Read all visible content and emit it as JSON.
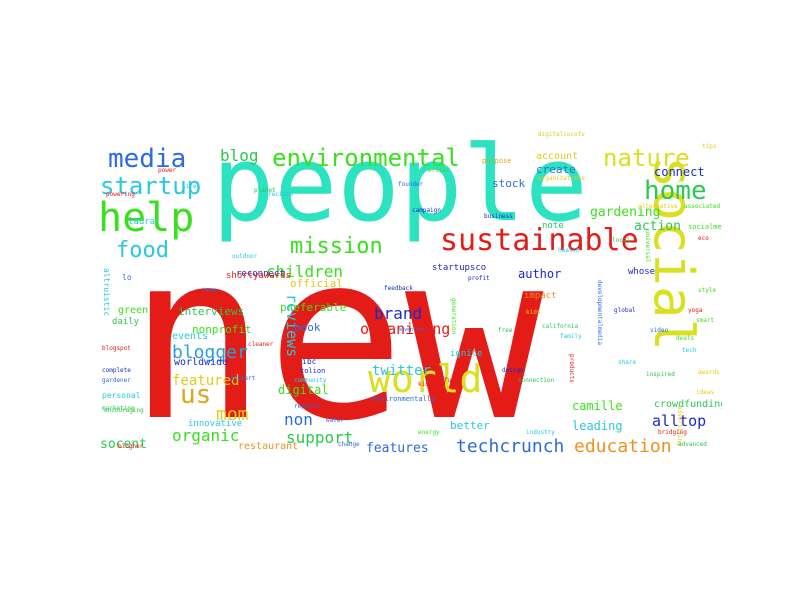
{
  "palette": {
    "red": "#e31c18",
    "teal": "#2be3c0",
    "lime": "#d9e021",
    "green": "#39e01e",
    "blue": "#2c6be0",
    "navy": "#1c2bc8",
    "yellow": "#e8c81a",
    "orange": "#f09020",
    "cyan": "#29c8e0",
    "aqua": "#1fe0e0"
  },
  "words": [
    {
      "text": "new",
      "color": "#e31c18"
    },
    {
      "text": "people",
      "color": "#2be3c0"
    },
    {
      "text": "social",
      "color": "#d9e021"
    },
    {
      "text": "sustainable",
      "color": "#e31c18"
    },
    {
      "text": "help",
      "color": "#39e01e"
    },
    {
      "text": "world",
      "color": "#d9e021"
    },
    {
      "text": "environmental",
      "color": "#39e01e"
    },
    {
      "text": "media",
      "color": "#2c6be0"
    },
    {
      "text": "startup",
      "color": "#29c8e0"
    },
    {
      "text": "food",
      "color": "#29c8e0"
    },
    {
      "text": "mission",
      "color": "#39e01e"
    },
    {
      "text": "nature",
      "color": "#d9e021"
    },
    {
      "text": "home",
      "color": "#2bc850"
    },
    {
      "text": "us",
      "color": "#d9a71a"
    },
    {
      "text": "blog",
      "color": "#2bc850"
    },
    {
      "text": "blogger",
      "color": "#29a0e0"
    },
    {
      "text": "mom",
      "color": "#e8c81a"
    },
    {
      "text": "children",
      "color": "#39e01e"
    },
    {
      "text": "brand",
      "color": "#1c2bc8"
    },
    {
      "text": "organizing",
      "color": "#e31c18"
    },
    {
      "text": "education",
      "color": "#f09020"
    },
    {
      "text": "techcrunch",
      "color": "#2c6be0"
    },
    {
      "text": "support",
      "color": "#2bc850"
    },
    {
      "text": "organic",
      "color": "#39e01e"
    },
    {
      "text": "featured",
      "color": "#e8c81a"
    },
    {
      "text": "twitter",
      "color": "#29c8e0"
    },
    {
      "text": "reviews",
      "color": "#29c8e0"
    },
    {
      "text": "non",
      "color": "#2c6be0"
    },
    {
      "text": "alltop",
      "color": "#1c2bc8"
    },
    {
      "text": "gardening",
      "color": "#39e01e"
    },
    {
      "text": "action",
      "color": "#2bc850"
    },
    {
      "text": "connect",
      "color": "#1c2bc8"
    },
    {
      "text": "features",
      "color": "#2c6be0"
    },
    {
      "text": "socent",
      "color": "#2bc850"
    },
    {
      "text": "leading",
      "color": "#29c8e0"
    },
    {
      "text": "camille",
      "color": "#39e01e"
    },
    {
      "text": "crowdfunding",
      "color": "#2bc850"
    },
    {
      "text": "interviews",
      "color": "#2bc850"
    },
    {
      "text": "nonprofit",
      "color": "#39e01e"
    },
    {
      "text": "events",
      "color": "#29c8e0"
    },
    {
      "text": "worldwide",
      "color": "#1c2bc8"
    },
    {
      "text": "digital",
      "color": "#39e01e"
    },
    {
      "text": "better",
      "color": "#29c8e0"
    },
    {
      "text": "restaurant",
      "color": "#f09020"
    },
    {
      "text": "author",
      "color": "#1c2bc8"
    },
    {
      "text": "stock",
      "color": "#2c6be0"
    },
    {
      "text": "create",
      "color": "#2c6be0"
    },
    {
      "text": "preferable",
      "color": "#39e01e"
    },
    {
      "text": "official",
      "color": "#e8c81a"
    },
    {
      "text": "book",
      "color": "#2c6be0"
    },
    {
      "text": "account",
      "color": "#e8c81a"
    },
    {
      "text": "innovative",
      "color": "#29c8e0"
    },
    {
      "text": "daily",
      "color": "#2bc850"
    },
    {
      "text": "green",
      "color": "#39e01e"
    },
    {
      "text": "reconnect",
      "color": "#1c2bc8"
    },
    {
      "text": "impact",
      "color": "#f09020"
    },
    {
      "text": "ignite",
      "color": "#29c8e0"
    },
    {
      "text": "startupsco",
      "color": "#1c2bc8"
    },
    {
      "text": "note",
      "color": "#2bc850"
    },
    {
      "text": "whose",
      "color": "#1c2bc8"
    },
    {
      "text": "laura",
      "color": "#29c8e0"
    },
    {
      "text": "shortyawards",
      "color": "#e31c18"
    },
    {
      "text": "tolion",
      "color": "#1c2bc8"
    },
    {
      "text": "ibc",
      "color": "#1c2bc8"
    },
    {
      "text": "environmentally",
      "color": "#2c6be0"
    },
    {
      "text": "personal",
      "color": "#29c8e0"
    },
    {
      "text": "gardener",
      "color": "#2c6be0"
    },
    {
      "text": "lo",
      "color": "#2c6be0"
    },
    {
      "text": "blogspot",
      "color": "#e31c18"
    },
    {
      "text": "complete",
      "color": "#1c2bc8"
    },
    {
      "text": "marketing",
      "color": "#2bc850"
    },
    {
      "text": "altruistic",
      "color": "#29c8e0"
    },
    {
      "text": "purpose",
      "color": "#d9a71a"
    },
    {
      "text": "digitalcocotv",
      "color": "#e8c81a"
    },
    {
      "text": "organizations",
      "color": "#e8c81a"
    },
    {
      "text": "advertising",
      "color": "#e8c81a"
    },
    {
      "text": "eco",
      "color": "#e31c18"
    },
    {
      "text": "business",
      "color": "#1c2bc8"
    },
    {
      "text": "campaign",
      "color": "#1c2bc8"
    },
    {
      "text": "connection",
      "color": "#2bc850"
    },
    {
      "text": "generation",
      "color": "#39e01e"
    },
    {
      "text": "california",
      "color": "#2bc850"
    },
    {
      "text": "products",
      "color": "#e31c18"
    },
    {
      "text": "community",
      "color": "#29c8e0"
    },
    {
      "text": "reports",
      "color": "#2c6be0"
    },
    {
      "text": "change",
      "color": "#2c6be0"
    },
    {
      "text": "industry",
      "color": "#29c8e0"
    },
    {
      "text": "bridging",
      "color": "#e31c18"
    },
    {
      "text": "advanced",
      "color": "#2bc850"
    },
    {
      "text": "associated",
      "color": "#39e01e"
    },
    {
      "text": "universal",
      "color": "#39e01e"
    },
    {
      "text": "socialmedia",
      "color": "#39e01e"
    },
    {
      "text": "developmentalmedia",
      "color": "#2c6be0"
    },
    {
      "text": "powering",
      "color": "#e31c18"
    },
    {
      "text": "encouraging",
      "color": "#2bc850"
    },
    {
      "text": "blogher",
      "color": "#e31c18"
    },
    {
      "text": "outdoor",
      "color": "#29c8e0"
    },
    {
      "text": "feedback",
      "color": "#1c2bc8"
    },
    {
      "text": "adventure",
      "color": "#2c6be0"
    },
    {
      "text": "alternative",
      "color": "#e8c81a"
    },
    {
      "text": "planet",
      "color": "#2bc850"
    },
    {
      "text": "recipes",
      "color": "#29c8e0"
    },
    {
      "text": "design",
      "color": "#1c2bc8"
    },
    {
      "text": "cleaner",
      "color": "#e31c18"
    },
    {
      "text": "dessert",
      "color": "#2c6be0"
    },
    {
      "text": "awards",
      "color": "#e8c81a"
    },
    {
      "text": "tech",
      "color": "#29c8e0"
    },
    {
      "text": "smart",
      "color": "#39e01e"
    },
    {
      "text": "kid",
      "color": "#e31c18"
    },
    {
      "text": "founder",
      "color": "#2c6be0"
    },
    {
      "text": "writer",
      "color": "#39e01e"
    },
    {
      "text": "health",
      "color": "#29c8e0"
    },
    {
      "text": "local",
      "color": "#2bc850"
    },
    {
      "text": "tips",
      "color": "#e8c81a"
    },
    {
      "text": "profit",
      "color": "#1c2bc8"
    },
    {
      "text": "fund",
      "color": "#e31c18"
    },
    {
      "text": "share",
      "color": "#29c8e0"
    },
    {
      "text": "video",
      "color": "#2c6be0"
    },
    {
      "text": "deals",
      "color": "#39e01e"
    },
    {
      "text": "inspired",
      "color": "#2bc850"
    },
    {
      "text": "ideas",
      "color": "#e8c81a"
    },
    {
      "text": "power",
      "color": "#e31c18"
    },
    {
      "text": "life",
      "color": "#29c8e0"
    },
    {
      "text": "energy",
      "color": "#39e01e"
    },
    {
      "text": "water",
      "color": "#2c6be0"
    },
    {
      "text": "free",
      "color": "#2bc850"
    },
    {
      "text": "kids",
      "color": "#e8c81a"
    },
    {
      "text": "family",
      "color": "#29c8e0"
    },
    {
      "text": "global",
      "color": "#1c2bc8"
    },
    {
      "text": "yoga",
      "color": "#e31c18"
    },
    {
      "text": "style",
      "color": "#39e01e"
    },
    {
      "text": "team",
      "color": "#2c6be0"
    }
  ]
}
